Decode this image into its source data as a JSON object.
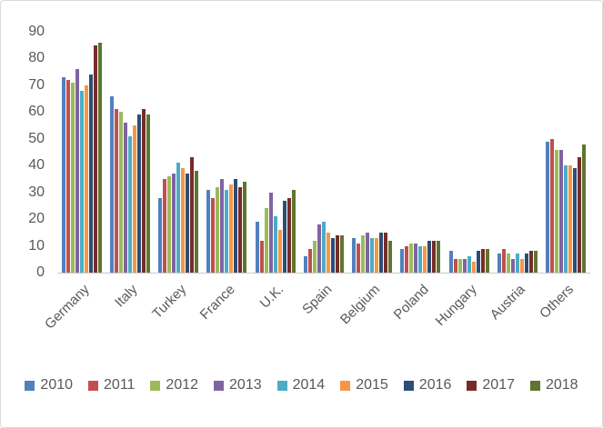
{
  "chart_data": {
    "type": "bar",
    "title": "",
    "xlabel": "",
    "ylabel": "",
    "categories": [
      "Germany",
      "Italy",
      "Turkey",
      "France",
      "U.K.",
      "Spain",
      "Belgium",
      "Poland",
      "Hungary",
      "Austria",
      "Others"
    ],
    "series": [
      {
        "name": "2010",
        "color": "#4F81BD",
        "values": [
          73,
          66,
          28,
          31,
          19,
          6,
          13,
          9,
          8,
          7,
          49
        ]
      },
      {
        "name": "2011",
        "color": "#C0504D",
        "values": [
          72,
          61,
          35,
          28,
          12,
          9,
          11,
          10,
          5,
          9,
          50
        ]
      },
      {
        "name": "2012",
        "color": "#9BBB59",
        "values": [
          71,
          60,
          36,
          32,
          24,
          12,
          14,
          11,
          5,
          7,
          46
        ]
      },
      {
        "name": "2013",
        "color": "#8064A2",
        "values": [
          76,
          56,
          37,
          35,
          30,
          18,
          15,
          11,
          5,
          5,
          46
        ]
      },
      {
        "name": "2014",
        "color": "#4BACC6",
        "values": [
          68,
          51,
          41,
          31,
          21,
          19,
          13,
          10,
          6,
          7,
          40
        ]
      },
      {
        "name": "2015",
        "color": "#F79646",
        "values": [
          70,
          55,
          39,
          33,
          16,
          15,
          13,
          10,
          4,
          5,
          40
        ]
      },
      {
        "name": "2016",
        "color": "#2C4D75",
        "values": [
          74,
          59,
          37,
          35,
          27,
          13,
          15,
          12,
          8,
          7,
          39
        ]
      },
      {
        "name": "2017",
        "color": "#772C2A",
        "values": [
          85,
          61,
          43,
          32,
          28,
          14,
          15,
          12,
          9,
          8,
          43
        ]
      },
      {
        "name": "2018",
        "color": "#5F7530",
        "values": [
          86,
          59,
          38,
          34,
          31,
          14,
          12,
          12,
          9,
          8,
          48
        ]
      }
    ],
    "y_axis": {
      "min": 0,
      "max": 90,
      "step": 10,
      "tick_labels": [
        "0",
        "10",
        "20",
        "30",
        "40",
        "50",
        "60",
        "70",
        "80",
        "90"
      ]
    },
    "legend_position": "bottom",
    "gridlines": false
  },
  "frame": {
    "background": "#FFFFFF",
    "border_color": "#D9D9D9",
    "text_color": "#595959",
    "axis_line_color": "#C9C9C9"
  }
}
